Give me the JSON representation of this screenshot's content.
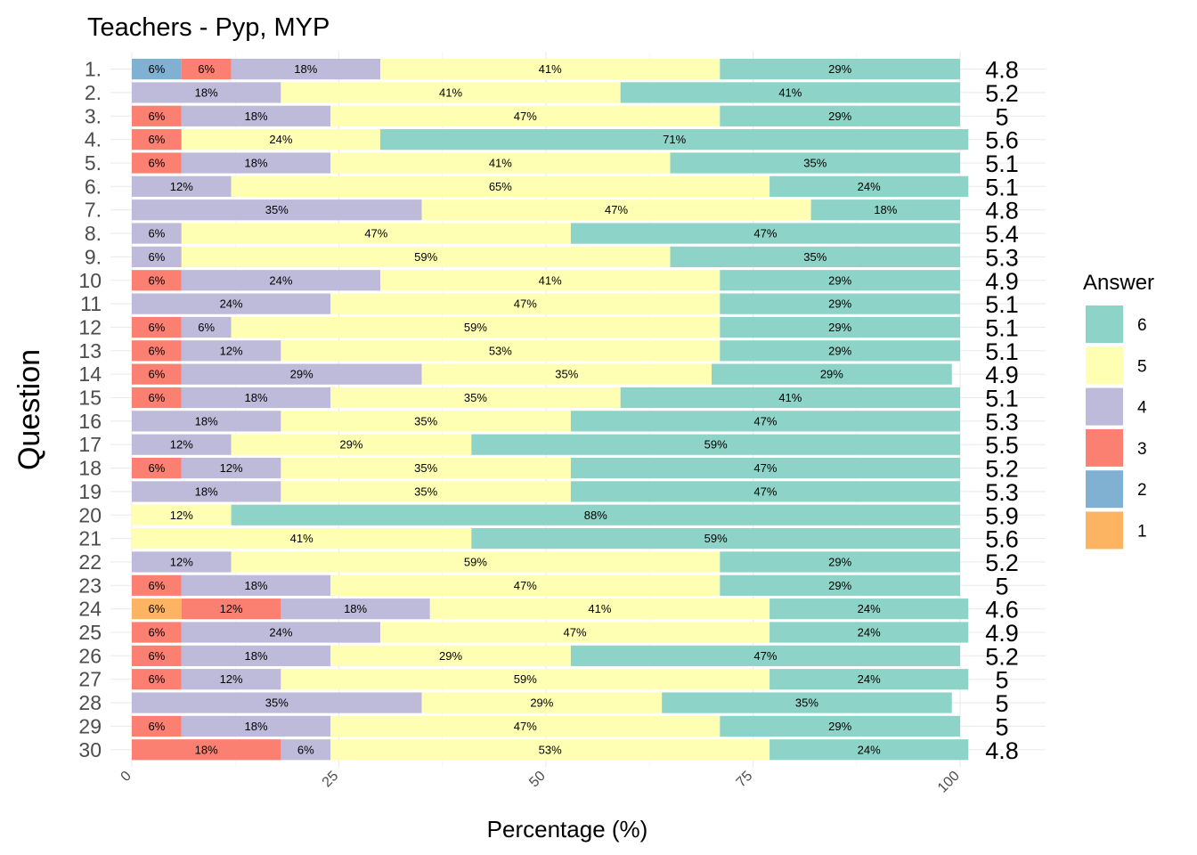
{
  "chart_data": {
    "type": "bar",
    "orientation": "horizontal-stacked",
    "title": "Teachers - Pyp, MYP",
    "xlabel": "Percentage (%)",
    "ylabel": "Question",
    "xlim": [
      0,
      100
    ],
    "xticks": [
      "0",
      "25",
      "50",
      "75",
      "100"
    ],
    "legend": {
      "title": "Answer",
      "position": "right",
      "entries": [
        {
          "label": "6",
          "color": "#8dd3c7"
        },
        {
          "label": "5",
          "color": "#ffffb3"
        },
        {
          "label": "4",
          "color": "#bebada"
        },
        {
          "label": "3",
          "color": "#fb8072"
        },
        {
          "label": "2",
          "color": "#80b1d3"
        },
        {
          "label": "1",
          "color": "#fdb462"
        }
      ]
    },
    "answer_colors": {
      "1": "#fdb462",
      "2": "#80b1d3",
      "3": "#fb8072",
      "4": "#bebada",
      "5": "#ffffb3",
      "6": "#8dd3c7"
    },
    "questions": [
      {
        "label": "1.",
        "mean": "4.8",
        "segments": [
          {
            "answer": "2",
            "value": 6,
            "text": "6%"
          },
          {
            "answer": "3",
            "value": 6,
            "text": "6%"
          },
          {
            "answer": "4",
            "value": 18,
            "text": "18%"
          },
          {
            "answer": "5",
            "value": 41,
            "text": "41%"
          },
          {
            "answer": "6",
            "value": 29,
            "text": "29%"
          }
        ]
      },
      {
        "label": "2.",
        "mean": "5.2",
        "segments": [
          {
            "answer": "4",
            "value": 18,
            "text": "18%"
          },
          {
            "answer": "5",
            "value": 41,
            "text": "41%"
          },
          {
            "answer": "6",
            "value": 41,
            "text": "41%"
          }
        ]
      },
      {
        "label": "3.",
        "mean": "5",
        "segments": [
          {
            "answer": "3",
            "value": 6,
            "text": "6%"
          },
          {
            "answer": "4",
            "value": 18,
            "text": "18%"
          },
          {
            "answer": "5",
            "value": 47,
            "text": "47%"
          },
          {
            "answer": "6",
            "value": 29,
            "text": "29%"
          }
        ]
      },
      {
        "label": "4.",
        "mean": "5.6",
        "segments": [
          {
            "answer": "3",
            "value": 6,
            "text": "6%"
          },
          {
            "answer": "5",
            "value": 24,
            "text": "24%"
          },
          {
            "answer": "6",
            "value": 71,
            "text": "71%"
          }
        ]
      },
      {
        "label": "5.",
        "mean": "5.1",
        "segments": [
          {
            "answer": "3",
            "value": 6,
            "text": "6%"
          },
          {
            "answer": "4",
            "value": 18,
            "text": "18%"
          },
          {
            "answer": "5",
            "value": 41,
            "text": "41%"
          },
          {
            "answer": "6",
            "value": 35,
            "text": "35%"
          }
        ]
      },
      {
        "label": "6.",
        "mean": "5.1",
        "segments": [
          {
            "answer": "4",
            "value": 12,
            "text": "12%"
          },
          {
            "answer": "5",
            "value": 65,
            "text": "65%"
          },
          {
            "answer": "6",
            "value": 24,
            "text": "24%"
          }
        ]
      },
      {
        "label": "7.",
        "mean": "4.8",
        "segments": [
          {
            "answer": "4",
            "value": 35,
            "text": "35%"
          },
          {
            "answer": "5",
            "value": 47,
            "text": "47%"
          },
          {
            "answer": "6",
            "value": 18,
            "text": "18%"
          }
        ]
      },
      {
        "label": "8.",
        "mean": "5.4",
        "segments": [
          {
            "answer": "4",
            "value": 6,
            "text": "6%"
          },
          {
            "answer": "5",
            "value": 47,
            "text": "47%"
          },
          {
            "answer": "6",
            "value": 47,
            "text": "47%"
          }
        ]
      },
      {
        "label": "9.",
        "mean": "5.3",
        "segments": [
          {
            "answer": "4",
            "value": 6,
            "text": "6%"
          },
          {
            "answer": "5",
            "value": 59,
            "text": "59%"
          },
          {
            "answer": "6",
            "value": 35,
            "text": "35%"
          }
        ]
      },
      {
        "label": "10",
        "mean": "4.9",
        "segments": [
          {
            "answer": "3",
            "value": 6,
            "text": "6%"
          },
          {
            "answer": "4",
            "value": 24,
            "text": "24%"
          },
          {
            "answer": "5",
            "value": 41,
            "text": "41%"
          },
          {
            "answer": "6",
            "value": 29,
            "text": "29%"
          }
        ]
      },
      {
        "label": "11",
        "mean": "5.1",
        "segments": [
          {
            "answer": "4",
            "value": 24,
            "text": "24%"
          },
          {
            "answer": "5",
            "value": 47,
            "text": "47%"
          },
          {
            "answer": "6",
            "value": 29,
            "text": "29%"
          }
        ]
      },
      {
        "label": "12",
        "mean": "5.1",
        "segments": [
          {
            "answer": "3",
            "value": 6,
            "text": "6%"
          },
          {
            "answer": "4",
            "value": 6,
            "text": "6%"
          },
          {
            "answer": "5",
            "value": 59,
            "text": "59%"
          },
          {
            "answer": "6",
            "value": 29,
            "text": "29%"
          }
        ]
      },
      {
        "label": "13",
        "mean": "5.1",
        "segments": [
          {
            "answer": "3",
            "value": 6,
            "text": "6%"
          },
          {
            "answer": "4",
            "value": 12,
            "text": "12%"
          },
          {
            "answer": "5",
            "value": 53,
            "text": "53%"
          },
          {
            "answer": "6",
            "value": 29,
            "text": "29%"
          }
        ]
      },
      {
        "label": "14",
        "mean": "4.9",
        "segments": [
          {
            "answer": "3",
            "value": 6,
            "text": "6%"
          },
          {
            "answer": "4",
            "value": 29,
            "text": "29%"
          },
          {
            "answer": "5",
            "value": 35,
            "text": "35%"
          },
          {
            "answer": "6",
            "value": 29,
            "text": "29%"
          }
        ]
      },
      {
        "label": "15",
        "mean": "5.1",
        "segments": [
          {
            "answer": "3",
            "value": 6,
            "text": "6%"
          },
          {
            "answer": "4",
            "value": 18,
            "text": "18%"
          },
          {
            "answer": "5",
            "value": 35,
            "text": "35%"
          },
          {
            "answer": "6",
            "value": 41,
            "text": "41%"
          }
        ]
      },
      {
        "label": "16",
        "mean": "5.3",
        "segments": [
          {
            "answer": "4",
            "value": 18,
            "text": "18%"
          },
          {
            "answer": "5",
            "value": 35,
            "text": "35%"
          },
          {
            "answer": "6",
            "value": 47,
            "text": "47%"
          }
        ]
      },
      {
        "label": "17",
        "mean": "5.5",
        "segments": [
          {
            "answer": "4",
            "value": 12,
            "text": "12%"
          },
          {
            "answer": "5",
            "value": 29,
            "text": "29%"
          },
          {
            "answer": "6",
            "value": 59,
            "text": "59%"
          }
        ]
      },
      {
        "label": "18",
        "mean": "5.2",
        "segments": [
          {
            "answer": "3",
            "value": 6,
            "text": "6%"
          },
          {
            "answer": "4",
            "value": 12,
            "text": "12%"
          },
          {
            "answer": "5",
            "value": 35,
            "text": "35%"
          },
          {
            "answer": "6",
            "value": 47,
            "text": "47%"
          }
        ]
      },
      {
        "label": "19",
        "mean": "5.3",
        "segments": [
          {
            "answer": "4",
            "value": 18,
            "text": "18%"
          },
          {
            "answer": "5",
            "value": 35,
            "text": "35%"
          },
          {
            "answer": "6",
            "value": 47,
            "text": "47%"
          }
        ]
      },
      {
        "label": "20",
        "mean": "5.9",
        "segments": [
          {
            "answer": "5",
            "value": 12,
            "text": "12%"
          },
          {
            "answer": "6",
            "value": 88,
            "text": "88%"
          }
        ]
      },
      {
        "label": "21",
        "mean": "5.6",
        "segments": [
          {
            "answer": "5",
            "value": 41,
            "text": "41%"
          },
          {
            "answer": "6",
            "value": 59,
            "text": "59%"
          }
        ]
      },
      {
        "label": "22",
        "mean": "5.2",
        "segments": [
          {
            "answer": "4",
            "value": 12,
            "text": "12%"
          },
          {
            "answer": "5",
            "value": 59,
            "text": "59%"
          },
          {
            "answer": "6",
            "value": 29,
            "text": "29%"
          }
        ]
      },
      {
        "label": "23",
        "mean": "5",
        "segments": [
          {
            "answer": "3",
            "value": 6,
            "text": "6%"
          },
          {
            "answer": "4",
            "value": 18,
            "text": "18%"
          },
          {
            "answer": "5",
            "value": 47,
            "text": "47%"
          },
          {
            "answer": "6",
            "value": 29,
            "text": "29%"
          }
        ]
      },
      {
        "label": "24",
        "mean": "4.6",
        "segments": [
          {
            "answer": "1",
            "value": 6,
            "text": "6%"
          },
          {
            "answer": "3",
            "value": 12,
            "text": "12%"
          },
          {
            "answer": "4",
            "value": 18,
            "text": "18%"
          },
          {
            "answer": "5",
            "value": 41,
            "text": "41%"
          },
          {
            "answer": "6",
            "value": 24,
            "text": "24%"
          }
        ]
      },
      {
        "label": "25",
        "mean": "4.9",
        "segments": [
          {
            "answer": "3",
            "value": 6,
            "text": "6%"
          },
          {
            "answer": "4",
            "value": 24,
            "text": "24%"
          },
          {
            "answer": "5",
            "value": 47,
            "text": "47%"
          },
          {
            "answer": "6",
            "value": 24,
            "text": "24%"
          }
        ]
      },
      {
        "label": "26",
        "mean": "5.2",
        "segments": [
          {
            "answer": "3",
            "value": 6,
            "text": "6%"
          },
          {
            "answer": "4",
            "value": 18,
            "text": "18%"
          },
          {
            "answer": "5",
            "value": 29,
            "text": "29%"
          },
          {
            "answer": "6",
            "value": 47,
            "text": "47%"
          }
        ]
      },
      {
        "label": "27",
        "mean": "5",
        "segments": [
          {
            "answer": "3",
            "value": 6,
            "text": "6%"
          },
          {
            "answer": "4",
            "value": 12,
            "text": "12%"
          },
          {
            "answer": "5",
            "value": 59,
            "text": "59%"
          },
          {
            "answer": "6",
            "value": 24,
            "text": "24%"
          }
        ]
      },
      {
        "label": "28",
        "mean": "5",
        "segments": [
          {
            "answer": "4",
            "value": 35,
            "text": "35%"
          },
          {
            "answer": "5",
            "value": 29,
            "text": "29%"
          },
          {
            "answer": "6",
            "value": 35,
            "text": "35%"
          }
        ]
      },
      {
        "label": "29",
        "mean": "5",
        "segments": [
          {
            "answer": "3",
            "value": 6,
            "text": "6%"
          },
          {
            "answer": "4",
            "value": 18,
            "text": "18%"
          },
          {
            "answer": "5",
            "value": 47,
            "text": "47%"
          },
          {
            "answer": "6",
            "value": 29,
            "text": "29%"
          }
        ]
      },
      {
        "label": "30",
        "mean": "4.8",
        "segments": [
          {
            "answer": "3",
            "value": 18,
            "text": "18%"
          },
          {
            "answer": "4",
            "value": 6,
            "text": "6%"
          },
          {
            "answer": "5",
            "value": 53,
            "text": "53%"
          },
          {
            "answer": "6",
            "value": 24,
            "text": "24%"
          }
        ]
      }
    ]
  }
}
